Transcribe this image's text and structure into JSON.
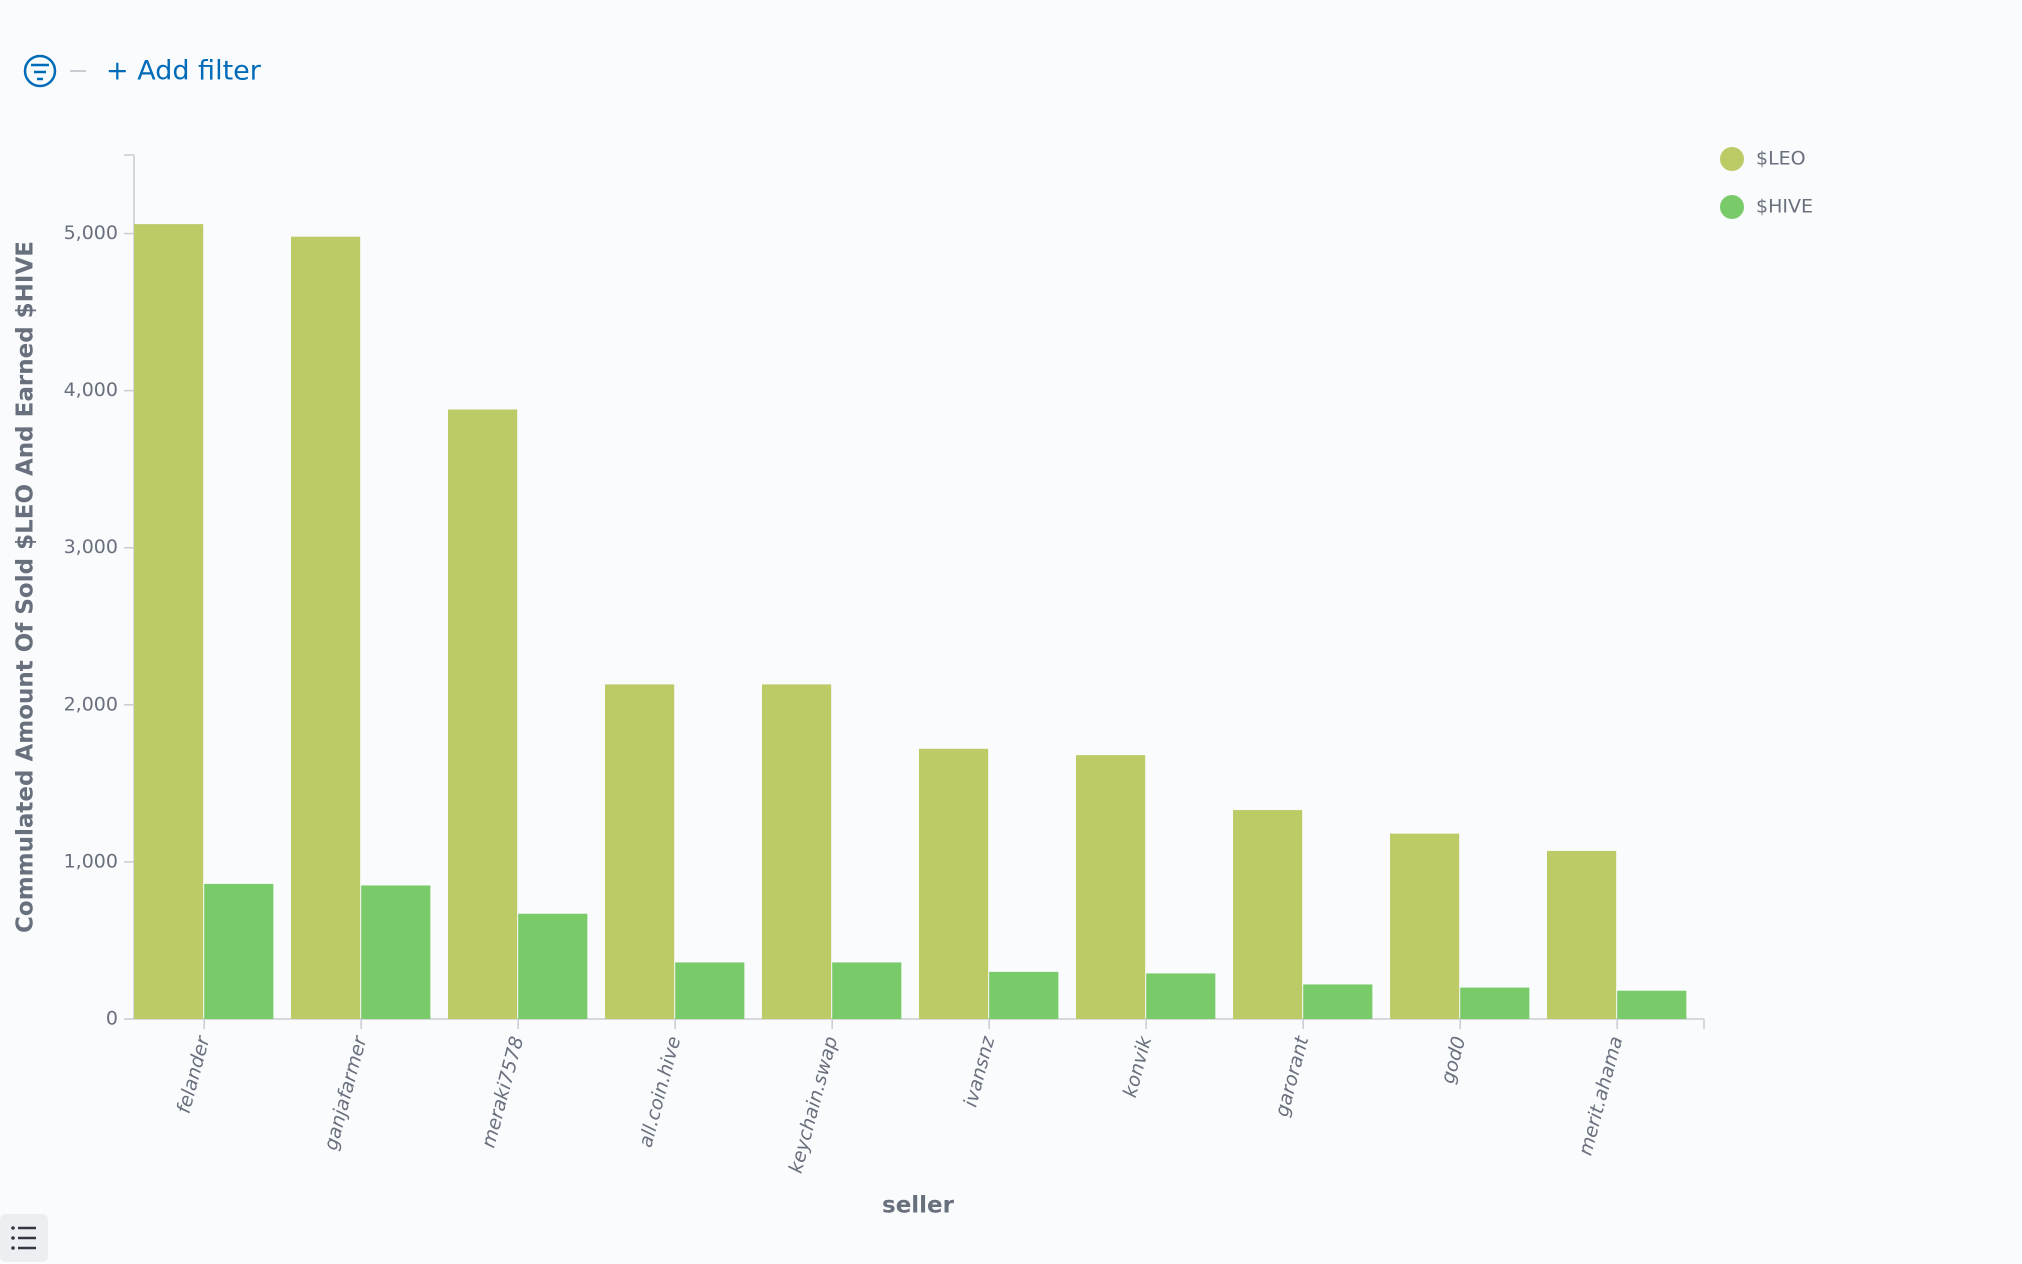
{
  "filter_bar": {
    "label": "+ Add filter"
  },
  "chart_data": {
    "type": "bar",
    "x_label": "seller",
    "y_label": "Commulated Amount Of Sold $LEO And Earned $HIVE",
    "categories": [
      "felander",
      "ganjafarmer",
      "meraki7578",
      "all.coin.hive",
      "keychain.swap",
      "ivansnz",
      "konvik",
      "garorant",
      "god0",
      "merit.ahama"
    ],
    "series": [
      {
        "name": "$LEO",
        "color": "#bccb66",
        "values": [
          5060,
          4980,
          3880,
          2130,
          2130,
          1720,
          1680,
          1330,
          1180,
          1070
        ]
      },
      {
        "name": "$HIVE",
        "color": "#79cb6a",
        "values": [
          860,
          850,
          670,
          360,
          360,
          300,
          290,
          220,
          200,
          180
        ]
      }
    ],
    "ylim": [
      0,
      5500
    ],
    "yticks": [
      0,
      {
        "value": 1000,
        "label": "1,000"
      },
      {
        "value": 2000,
        "label": "2,000"
      },
      {
        "value": 3000,
        "label": "3,000"
      },
      {
        "value": 4000,
        "label": "4,000"
      },
      {
        "value": 5000,
        "label": "5,000"
      }
    ],
    "legend": "top-right"
  }
}
